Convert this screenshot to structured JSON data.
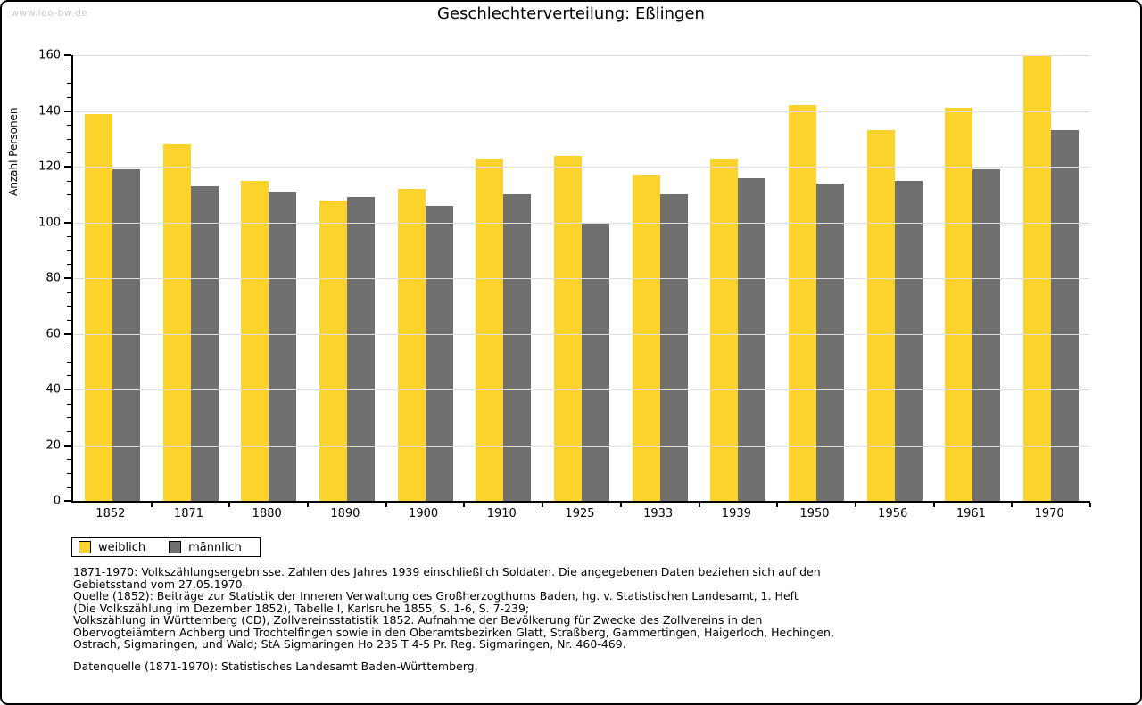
{
  "watermark": "www.leo-bw.de",
  "title": "Geschlechterverteilung: Eßlingen",
  "chart_data": {
    "type": "bar",
    "title": "Geschlechterverteilung: Eßlingen",
    "xlabel": "",
    "ylabel": "Anzahl Personen",
    "ylim": [
      0,
      160
    ],
    "major_tick": 20,
    "minor_tick": 5,
    "grid": "horizontal-major",
    "legend_position": "bottom-left",
    "categories": [
      "1852",
      "1871",
      "1880",
      "1890",
      "1900",
      "1910",
      "1925",
      "1933",
      "1939",
      "1950",
      "1956",
      "1961",
      "1970"
    ],
    "series": [
      {
        "name": "weiblich",
        "color": "#FCD32D",
        "values": [
          139,
          128,
          115,
          108,
          112,
          123,
          124,
          117,
          123,
          142,
          133,
          141,
          160
        ]
      },
      {
        "name": "männlich",
        "color": "#707070",
        "values": [
          119,
          113,
          111,
          109,
          106,
          110,
          100,
          110,
          116,
          114,
          115,
          119,
          133
        ]
      }
    ]
  },
  "footer": {
    "notes": [
      "1871-1970: Volkszählungsergebnisse. Zahlen des Jahres 1939 einschließlich Soldaten. Die angegebenen Daten beziehen sich auf den",
      "Gebietsstand vom 27.05.1970.",
      "Quelle (1852): Beiträge zur Statistik der Inneren Verwaltung des Großherzogthums Baden, hg. v. Statistischen Landesamt, 1. Heft",
      "(Die Volkszählung im Dezember 1852), Tabelle I, Karlsruhe 1855, S. 1-6, S. 7-239;",
      "Volkszählung in Württemberg (CD), Zollvereinsstatistik 1852. Aufnahme der Bevölkerung für Zwecke des Zollvereins in den",
      "Obervogteiämtern Achberg und Trochtelfingen sowie in den Oberamtsbezirken Glatt, Straßberg, Gammertingen, Haigerloch, Hechingen,",
      "Ostrach, Sigmaringen, und Wald; StA Sigmaringen Ho 235 T 4-5 Pr. Reg. Sigmaringen, Nr. 460-469."
    ],
    "datasource": "Datenquelle (1871-1970): Statistisches Landesamt Baden-Württemberg."
  }
}
